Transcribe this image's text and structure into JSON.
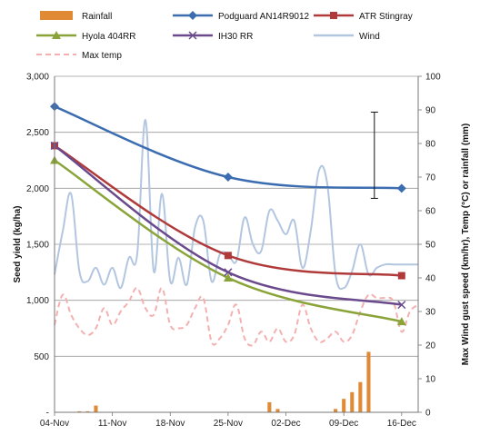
{
  "chart_data": {
    "type": "line",
    "x_ticks": [
      "04-Nov",
      "11-Nov",
      "18-Nov",
      "25-Nov",
      "02-Dec",
      "09-Dec",
      "16-Dec"
    ],
    "xlim": [
      0,
      44
    ],
    "ylabel": "Seed yield (kg/ha)",
    "ylim": [
      0,
      3000
    ],
    "y_ticks": [
      "-",
      "500",
      "1,000",
      "1,500",
      "2,000",
      "2,500",
      "3,000"
    ],
    "y2label": "Max Wind gust speed (km/hr), Temp (°C) or rainfall (mm)",
    "y2lim": [
      0,
      100
    ],
    "y2_ticks": [
      "0",
      "10",
      "20",
      "30",
      "40",
      "50",
      "60",
      "70",
      "80",
      "90",
      "100"
    ],
    "grid": true,
    "legend_position": "top",
    "yield_series": [
      {
        "name": "Podguard AN14R9012",
        "color": "#3b6db0",
        "marker": "diamond",
        "x": [
          0,
          21,
          42
        ],
        "y": [
          2730,
          2100,
          2000
        ]
      },
      {
        "name": "ATR Stingray",
        "color": "#b03a3a",
        "marker": "square",
        "x": [
          0,
          21,
          42
        ],
        "y": [
          2380,
          1400,
          1220
        ]
      },
      {
        "name": "Hyola 404RR",
        "color": "#8aa43a",
        "marker": "triangle",
        "x": [
          0,
          21,
          42
        ],
        "y": [
          2250,
          1200,
          810
        ]
      },
      {
        "name": "IH30 RR",
        "color": "#6a4a8c",
        "marker": "x",
        "x": [
          0,
          21,
          42
        ],
        "y": [
          2380,
          1250,
          960
        ]
      }
    ],
    "rainfall": {
      "name": "Rainfall",
      "color": "#e08a36",
      "x": [
        3,
        4,
        5,
        26,
        27,
        34,
        35,
        36,
        37,
        38
      ],
      "y": [
        0.3,
        0.3,
        2,
        3,
        1,
        1,
        4,
        6,
        9,
        18
      ]
    },
    "wind": {
      "name": "Wind",
      "color": "#b3c6e0",
      "x": [
        0,
        1,
        2,
        3,
        4,
        5,
        6,
        7,
        8,
        9,
        10,
        11,
        12,
        13,
        14,
        15,
        16,
        17,
        18,
        19,
        20,
        21,
        22,
        23,
        24,
        25,
        26,
        27,
        28,
        29,
        30,
        31,
        32,
        33,
        34,
        35,
        36,
        37,
        38,
        39,
        40,
        41,
        42,
        43,
        44
      ],
      "y": [
        41,
        54,
        65,
        42,
        39,
        43,
        38,
        43,
        37,
        46,
        47,
        87,
        42,
        65,
        39,
        46,
        38,
        55,
        57,
        39,
        47,
        47,
        45,
        58,
        50,
        48,
        60,
        57,
        53,
        57,
        43,
        54,
        72,
        68,
        41,
        37,
        42,
        50,
        41,
        43,
        44,
        44,
        44,
        44,
        44
      ]
    },
    "max_temp": {
      "name": "Max temp",
      "color": "#f4b0b0",
      "x": [
        0,
        1,
        2,
        3,
        4,
        5,
        6,
        7,
        8,
        9,
        10,
        11,
        12,
        13,
        14,
        15,
        16,
        17,
        18,
        19,
        20,
        21,
        22,
        23,
        24,
        25,
        26,
        27,
        28,
        29,
        30,
        31,
        32,
        33,
        34,
        35,
        36,
        37,
        38,
        39,
        40,
        41,
        42,
        43,
        44
      ],
      "y": [
        26,
        35,
        29,
        25,
        23,
        25,
        31,
        26,
        30,
        33,
        37,
        31,
        29,
        37,
        26,
        25,
        26,
        31,
        34,
        21,
        22,
        26,
        32,
        22,
        20,
        24,
        21,
        25,
        21,
        23,
        32,
        25,
        21,
        22,
        24,
        21,
        23,
        30,
        35,
        34,
        34,
        33,
        24,
        30,
        32
      ]
    },
    "error_bar": {
      "x": 38.7,
      "y_low": 1910,
      "y_high": 2680
    }
  }
}
